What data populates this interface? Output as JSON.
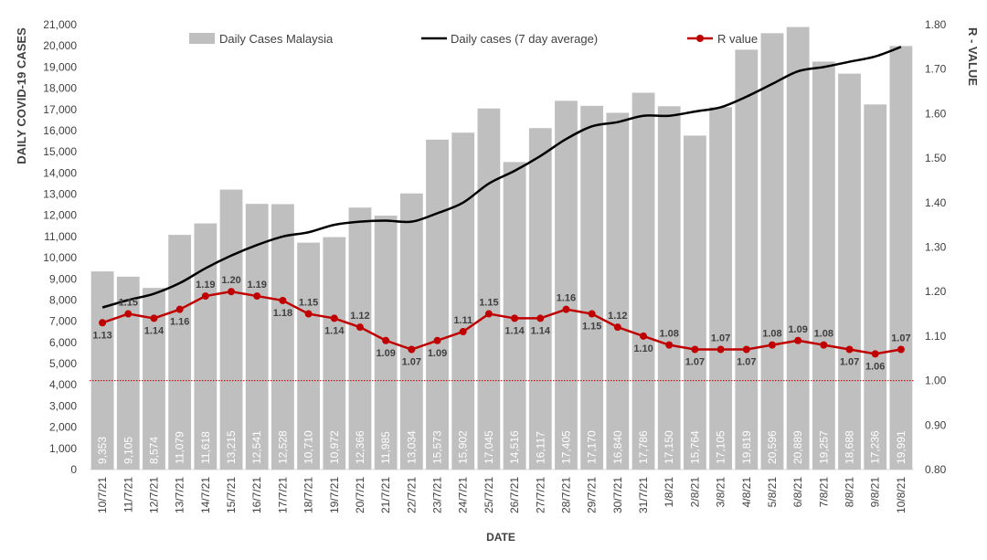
{
  "chart_data": {
    "type": "bar+line",
    "categories": [
      "10/7/21",
      "11/7/21",
      "12/7/21",
      "13/7/21",
      "14/7/21",
      "15/7/21",
      "16/7/21",
      "17/7/21",
      "18/7/21",
      "19/7/21",
      "20/7/21",
      "21/7/21",
      "22/7/21",
      "23/7/21",
      "24/7/21",
      "25/7/21",
      "26/7/21",
      "27/7/21",
      "28/7/21",
      "29/7/21",
      "30/7/21",
      "31/7/21",
      "1/8/21",
      "2/8/21",
      "3/8/21",
      "4/8/21",
      "5/8/21",
      "6/8/21",
      "7/8/21",
      "8/8/21",
      "9/8/21",
      "10/8/21"
    ],
    "series": [
      {
        "name": "Daily Cases Malaysia",
        "type": "bar",
        "axis": "left",
        "color": "#bfbfbf",
        "values": [
          9353,
          9105,
          8574,
          11079,
          11618,
          13215,
          12541,
          12528,
          10710,
          10972,
          12366,
          11985,
          13034,
          15573,
          15902,
          17045,
          14516,
          16117,
          17405,
          17170,
          16840,
          17786,
          17150,
          15764,
          17105,
          19819,
          20596,
          20889,
          19257,
          18688,
          17236,
          19991
        ],
        "labels": [
          "9,353",
          "9,105",
          "8,574",
          "11,079",
          "11,618",
          "13,215",
          "12,541",
          "12,528",
          "10,710",
          "10,972",
          "12,366",
          "11,985",
          "13,034",
          "15,573",
          "15,902",
          "17,045",
          "14,516",
          "16,117",
          "17,405",
          "17,170",
          "16,840",
          "17,786",
          "17,150",
          "15,764",
          "17,105",
          "19,819",
          "20,596",
          "20,889",
          "19,257",
          "18,688",
          "17,236",
          "19,991"
        ]
      },
      {
        "name": "Daily cases (7 day average)",
        "type": "line",
        "axis": "left",
        "color": "#000000",
        "values": [
          7650,
          8000,
          8300,
          8800,
          9500,
          10100,
          10600,
          11000,
          11200,
          11550,
          11700,
          11750,
          11700,
          12100,
          12600,
          13500,
          14100,
          14800,
          15600,
          16200,
          16400,
          16700,
          16700,
          16900,
          17100,
          17600,
          18200,
          18800,
          19000,
          19250,
          19500,
          19950
        ]
      },
      {
        "name": "R value",
        "type": "line",
        "axis": "right",
        "color": "#c00000",
        "values": [
          1.13,
          1.15,
          1.14,
          1.16,
          1.19,
          1.2,
          1.19,
          1.18,
          1.15,
          1.14,
          1.12,
          1.09,
          1.07,
          1.09,
          1.11,
          1.15,
          1.14,
          1.14,
          1.16,
          1.15,
          1.12,
          1.1,
          1.08,
          1.07,
          1.07,
          1.07,
          1.08,
          1.09,
          1.08,
          1.07,
          1.06,
          1.07
        ],
        "labels": [
          "1.13",
          "1.15",
          "1.14",
          "1.16",
          "1.19",
          "1.20",
          "1.19",
          "1.18",
          "1.15",
          "1.14",
          "1.12",
          "1.09",
          "1.07",
          "1.09",
          "1.11",
          "1.15",
          "1.14",
          "1.14",
          "1.16",
          "1.15",
          "1.12",
          "1.10",
          "1.08",
          "1.07",
          "1.07",
          "1.07",
          "1.08",
          "1.09",
          "1.08",
          "1.07",
          "1.06",
          "1.07"
        ]
      }
    ],
    "threshold": {
      "axis": "right",
      "value": 1.0,
      "color": "#c00000"
    },
    "xlabel": "DATE",
    "ylabel": "DAILY COVID-19 CASES",
    "y2label": "R - VALUE",
    "ylim": [
      0,
      21000
    ],
    "y2lim": [
      0.8,
      1.8
    ],
    "yticks": [
      "0",
      "1,000",
      "2,000",
      "3,000",
      "4,000",
      "5,000",
      "6,000",
      "7,000",
      "8,000",
      "9,000",
      "10,000",
      "11,000",
      "12,000",
      "13,000",
      "14,000",
      "15,000",
      "16,000",
      "17,000",
      "18,000",
      "19,000",
      "20,000",
      "21,000"
    ],
    "y2ticks": [
      "0.80",
      "0.90",
      "1.00",
      "1.10",
      "1.20",
      "1.30",
      "1.40",
      "1.50",
      "1.60",
      "1.70",
      "1.80"
    ],
    "legend_position": "top",
    "grid": false
  }
}
